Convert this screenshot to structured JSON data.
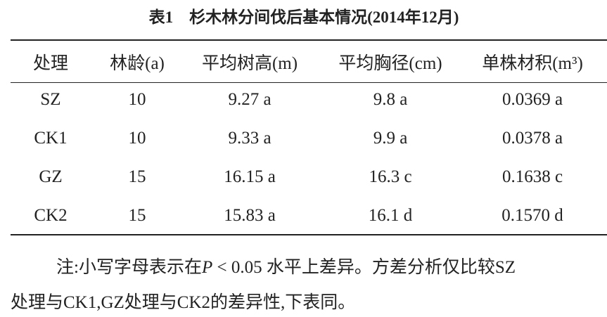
{
  "table": {
    "title": "表1　杉木林分间伐后基本情况(2014年12月)",
    "header": [
      "处理",
      "林龄(a)",
      "平均树高(m)",
      "平均胸径(cm)",
      "单株材积(m³)"
    ],
    "rows": [
      [
        "SZ",
        "10",
        "9.27 a",
        "9.8 a",
        "0.0369 a"
      ],
      [
        "CK1",
        "10",
        "9.33 a",
        "9.9 a",
        "0.0378 a"
      ],
      [
        "GZ",
        "15",
        "16.15 a",
        "16.3 c",
        "0.1638 c"
      ],
      [
        "CK2",
        "15",
        "15.83 a",
        "16.1 d",
        "0.1570 d"
      ]
    ]
  },
  "note": {
    "lines": [
      [
        "注:小写字母表示在",
        "P",
        " < 0.05 水平上差异。方差分析仅比较SZ"
      ],
      [
        "处理与CK1,GZ处理与CK2的差异性,下表同。"
      ]
    ]
  }
}
